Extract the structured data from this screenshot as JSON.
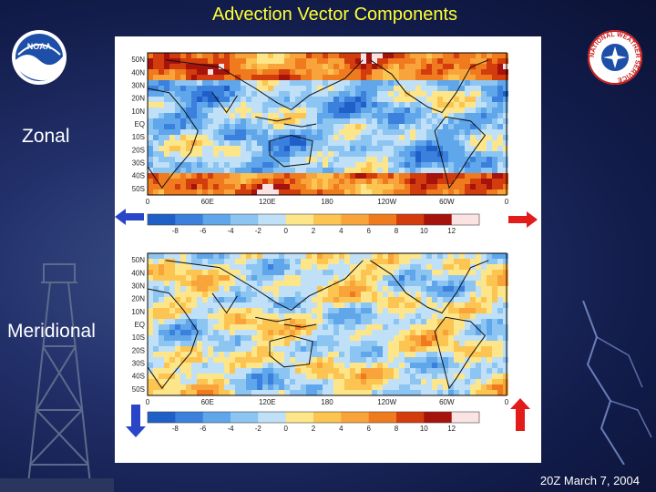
{
  "slide": {
    "title": "Advection Vector Components",
    "footer": "20Z March 7, 2004"
  },
  "labels": {
    "zonal": "Zonal",
    "meridional": "Meridional"
  },
  "logos": {
    "noaa_text": "NOAA",
    "nws_text": "NATIONAL WEATHER SERVICE"
  },
  "maps": {
    "lat_labels": [
      "50N",
      "40N",
      "30N",
      "20N",
      "10N",
      "EQ",
      "10S",
      "20S",
      "30S",
      "40S",
      "50S"
    ],
    "lon_labels": [
      "0",
      "60E",
      "120E",
      "180",
      "120W",
      "60W",
      "0"
    ],
    "colorbar_labels": [
      "-8",
      "-6",
      "-4",
      "-2",
      "0",
      "2",
      "4",
      "6",
      "8",
      "10",
      "12"
    ],
    "colorbar_colors": [
      "#1f5fc8",
      "#3a80dc",
      "#5fa6ea",
      "#8cc4f2",
      "#bfe0f7",
      "#fde68a",
      "#fcc450",
      "#f9a43a",
      "#f07a1e",
      "#d33c0c",
      "#a6120c",
      "#fbe3e3"
    ],
    "zonal_arrows": {
      "negative": "#2a45c8",
      "positive": "#e21b1b"
    },
    "meridional_arrows": {
      "negative": "#2a45c8",
      "positive": "#e21b1b"
    }
  }
}
